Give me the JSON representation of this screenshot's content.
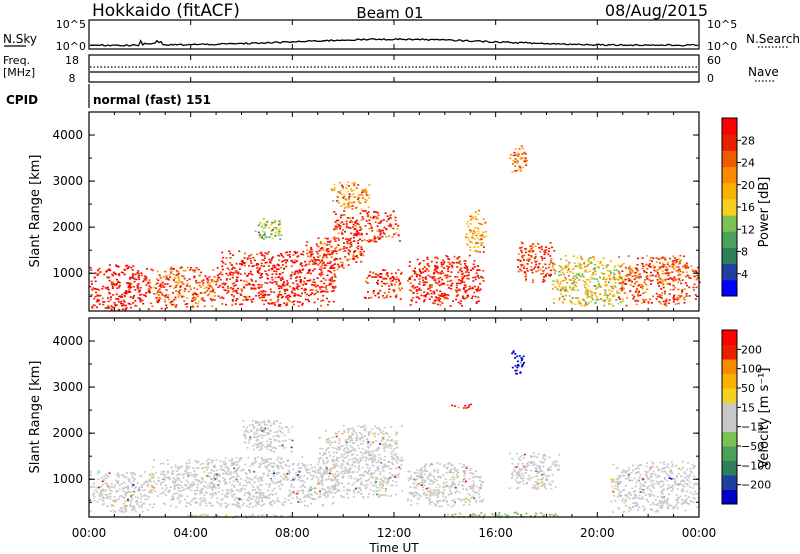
{
  "header": {
    "station": "Hokkaido (fitACF)",
    "beam": "Beam 01",
    "date": "08/Aug/2015"
  },
  "noise_panel": {
    "left_label": "N.Sky",
    "right_label": "N.Search",
    "left_ticks": [
      "10^5",
      "10^0"
    ],
    "right_ticks": [
      "10^5",
      "10^0"
    ]
  },
  "freq_panel": {
    "left_label_1": "Freq.",
    "left_label_2": "[MHz]",
    "left_ticks": [
      "18",
      "8"
    ],
    "right_label": "Nave",
    "right_ticks": [
      "60",
      "0"
    ]
  },
  "cpid": {
    "label": "CPID",
    "value": "normal (fast) 151"
  },
  "power_colorbar": {
    "label": "Power [dB]",
    "ticks": [
      "28",
      "24",
      "20",
      "16",
      "12",
      "8",
      "4"
    ],
    "colors": [
      "#0000ff",
      "#1f3fa0",
      "#2e7d5b",
      "#4aa25a",
      "#7cc253",
      "#f5d020",
      "#f9b200",
      "#f98a00",
      "#f25a00",
      "#e82000",
      "#ff0000"
    ]
  },
  "velocity_colorbar": {
    "label": "Velocity [m s⁻¹]",
    "ticks": [
      "200",
      "100",
      "50",
      "15",
      "−15",
      "−50",
      "−100",
      "−200"
    ],
    "colors": [
      "#0000cc",
      "#1f3fa0",
      "#2e7d5b",
      "#4aa25a",
      "#7cc253",
      "#c8c8c8",
      "#c8c8c8",
      "#f5d020",
      "#f9b200",
      "#f98a00",
      "#e82000",
      "#ff0000"
    ]
  },
  "chart_data": [
    {
      "type": "heatmap",
      "name": "power",
      "ylabel": "Slant Range [km]",
      "xlabel": "Time UT",
      "x_ticks": [
        "00:00",
        "04:00",
        "08:00",
        "12:00",
        "16:00",
        "20:00",
        "00:00"
      ],
      "xlim_hours": [
        0,
        24
      ],
      "y_ticks": [
        1000,
        2000,
        3000,
        4000
      ],
      "ylim": [
        180,
        4500
      ],
      "zlim": [
        0,
        30
      ],
      "regions": [
        {
          "t0": 0.0,
          "t1": 2.4,
          "r0": 200,
          "r1": 1200,
          "value": 29
        },
        {
          "t0": 2.3,
          "t1": 5.0,
          "r0": 250,
          "r1": 1150,
          "value": 24
        },
        {
          "t0": 5.0,
          "t1": 9.8,
          "r0": 300,
          "r1": 1500,
          "value": 28
        },
        {
          "t0": 8.5,
          "t1": 10.8,
          "r0": 1100,
          "r1": 1800,
          "value": 26
        },
        {
          "t0": 9.6,
          "t1": 12.2,
          "r0": 1700,
          "r1": 2400,
          "value": 27
        },
        {
          "t0": 9.5,
          "t1": 11.0,
          "r0": 2400,
          "r1": 3000,
          "value": 20
        },
        {
          "t0": 10.8,
          "t1": 12.3,
          "r0": 450,
          "r1": 1100,
          "value": 27
        },
        {
          "t0": 12.5,
          "t1": 15.5,
          "r0": 300,
          "r1": 1400,
          "value": 28
        },
        {
          "t0": 14.8,
          "t1": 15.6,
          "r0": 1400,
          "r1": 2400,
          "value": 20
        },
        {
          "t0": 16.5,
          "t1": 17.2,
          "r0": 3200,
          "r1": 3800,
          "value": 22
        },
        {
          "t0": 16.8,
          "t1": 18.3,
          "r0": 800,
          "r1": 1700,
          "value": 26
        },
        {
          "t0": 18.2,
          "t1": 21.0,
          "r0": 300,
          "r1": 1400,
          "value": 16
        },
        {
          "t0": 20.8,
          "t1": 24.0,
          "r0": 300,
          "r1": 1400,
          "value": 24
        },
        {
          "t0": 6.5,
          "t1": 7.6,
          "r0": 1700,
          "r1": 2200,
          "value": 12
        }
      ]
    },
    {
      "type": "heatmap",
      "name": "velocity",
      "ylabel": "Slant Range [km]",
      "xlabel": "Time UT",
      "x_ticks": [
        "00:00",
        "04:00",
        "08:00",
        "12:00",
        "16:00",
        "20:00",
        "00:00"
      ],
      "xlim_hours": [
        0,
        24
      ],
      "y_ticks": [
        1000,
        2000,
        3000,
        4000
      ],
      "ylim": [
        180,
        4500
      ],
      "zlim": [
        -250,
        250
      ],
      "regions": [
        {
          "t0": 0.0,
          "t1": 2.5,
          "r0": 300,
          "r1": 1200,
          "value": 0
        },
        {
          "t0": 2.3,
          "t1": 9.8,
          "r0": 400,
          "r1": 1500,
          "value": 0
        },
        {
          "t0": 6.0,
          "t1": 8.0,
          "r0": 1600,
          "r1": 2300,
          "value": 0
        },
        {
          "t0": 9.0,
          "t1": 12.3,
          "r0": 600,
          "r1": 2200,
          "value": 0
        },
        {
          "t0": 12.5,
          "t1": 15.5,
          "r0": 400,
          "r1": 1400,
          "value": 0
        },
        {
          "t0": 16.5,
          "t1": 18.5,
          "r0": 800,
          "r1": 1600,
          "value": 0
        },
        {
          "t0": 16.6,
          "t1": 17.1,
          "r0": 3300,
          "r1": 3800,
          "value": -240
        },
        {
          "t0": 14.2,
          "t1": 15.0,
          "r0": 2550,
          "r1": 2650,
          "value": 230
        },
        {
          "t0": 20.5,
          "t1": 24.0,
          "r0": 300,
          "r1": 1400,
          "value": 0
        },
        {
          "t0": 14.0,
          "t1": 18.5,
          "r0": 180,
          "r1": 300,
          "value": -40
        },
        {
          "t0": 3.5,
          "t1": 8.0,
          "r0": 180,
          "r1": 260,
          "value": 30
        }
      ]
    }
  ]
}
